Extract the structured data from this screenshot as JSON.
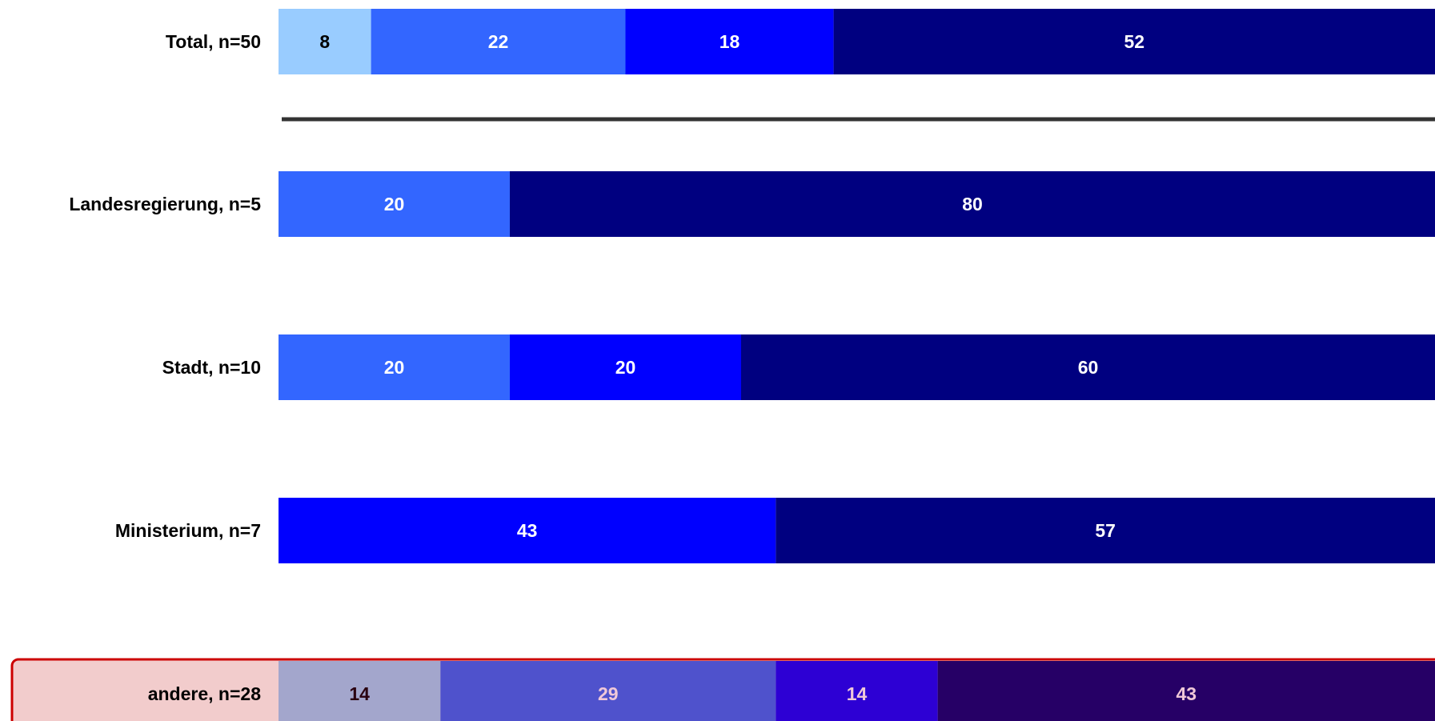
{
  "chart_data": {
    "type": "bar",
    "orientation": "horizontal",
    "stacked": true,
    "normalized_percent": true,
    "title": "",
    "xlabel": "",
    "ylabel": "",
    "xlim": [
      0,
      100
    ],
    "grid": false,
    "legend": "none",
    "categories": [
      "Total, n=50",
      "Landesregierung, n=5",
      "Stadt, n=10",
      "Ministerium, n=7",
      "andere, n=28"
    ],
    "highlighted_category": "andere, n=28",
    "separator_after_category": "Total, n=50",
    "segment_colors": [
      "#99ccff",
      "#3366ff",
      "#0000ff",
      "#000080"
    ],
    "highlight_colors": {
      "band": "#f2cccc",
      "border": "#cc0000",
      "segments": [
        "#a3a6cc",
        "#4f52cc",
        "#2d00d4",
        "#260066"
      ]
    },
    "rows": [
      {
        "label": "Total, n=50",
        "values": [
          8,
          22,
          18,
          52
        ],
        "highlighted": false
      },
      {
        "label": "Landesregierung, n=5",
        "values": [
          0,
          20,
          0,
          80
        ],
        "highlighted": false
      },
      {
        "label": "Stadt, n=10",
        "values": [
          0,
          20,
          20,
          60
        ],
        "highlighted": false
      },
      {
        "label": "Ministerium, n=7",
        "values": [
          0,
          0,
          43,
          57
        ],
        "highlighted": false
      },
      {
        "label": "andere, n=28",
        "values": [
          14,
          29,
          14,
          43
        ],
        "highlighted": true
      }
    ]
  }
}
